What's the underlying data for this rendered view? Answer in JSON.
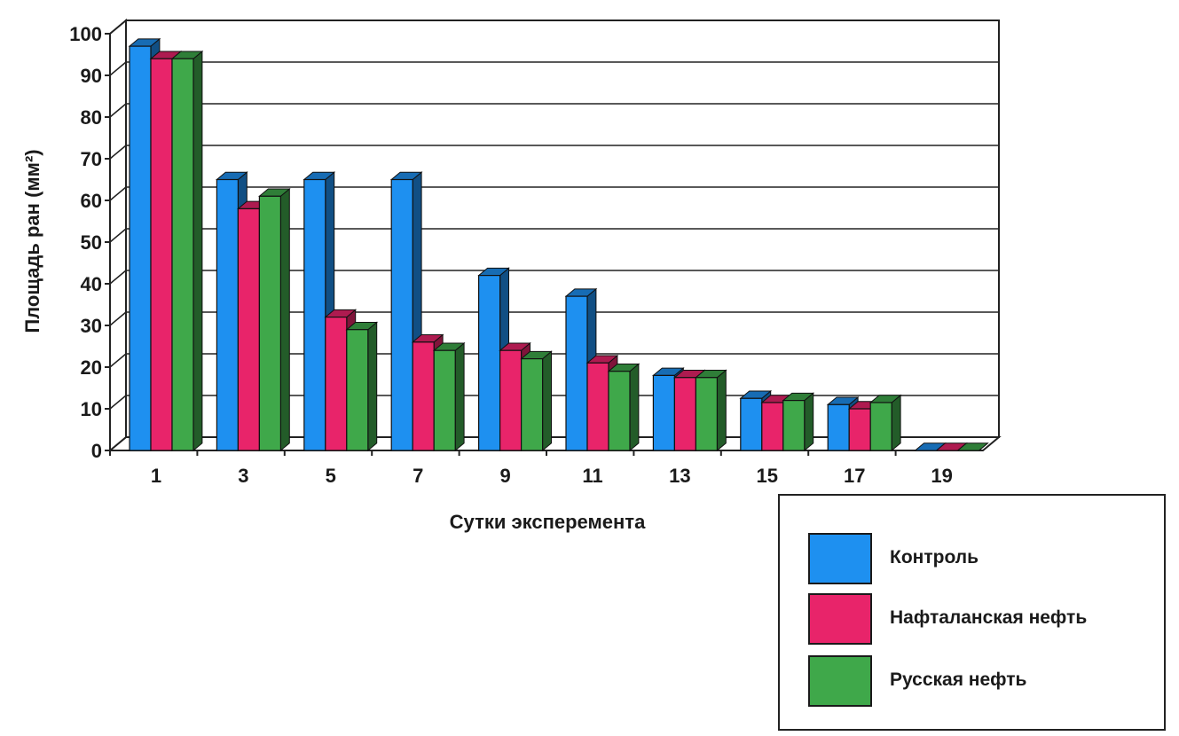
{
  "chart_data": {
    "type": "bar",
    "xlabel": "Сутки эксперемента",
    "ylabel": "Площадь ран (мм²)",
    "ylim": [
      0,
      100
    ],
    "yticks": [
      0,
      10,
      20,
      30,
      40,
      50,
      60,
      70,
      80,
      90,
      100
    ],
    "grid": true,
    "legend_position": "bottom-right",
    "categories": [
      "1",
      "3",
      "5",
      "7",
      "9",
      "11",
      "13",
      "15",
      "17",
      "19"
    ],
    "series": [
      {
        "name": "Контроль",
        "color": "#1e90f0",
        "values": [
          97,
          65,
          65,
          65,
          42,
          37,
          18,
          12.5,
          11,
          0
        ]
      },
      {
        "name": "Нафталанская нефть",
        "color": "#e8246a",
        "values": [
          94,
          58,
          32,
          26,
          24,
          21,
          17.5,
          11.5,
          10,
          0
        ]
      },
      {
        "name": "Русская нефть",
        "color": "#3fa84a",
        "values": [
          94,
          61,
          29,
          24,
          22,
          19,
          17.5,
          12,
          11.5,
          0
        ]
      }
    ]
  }
}
